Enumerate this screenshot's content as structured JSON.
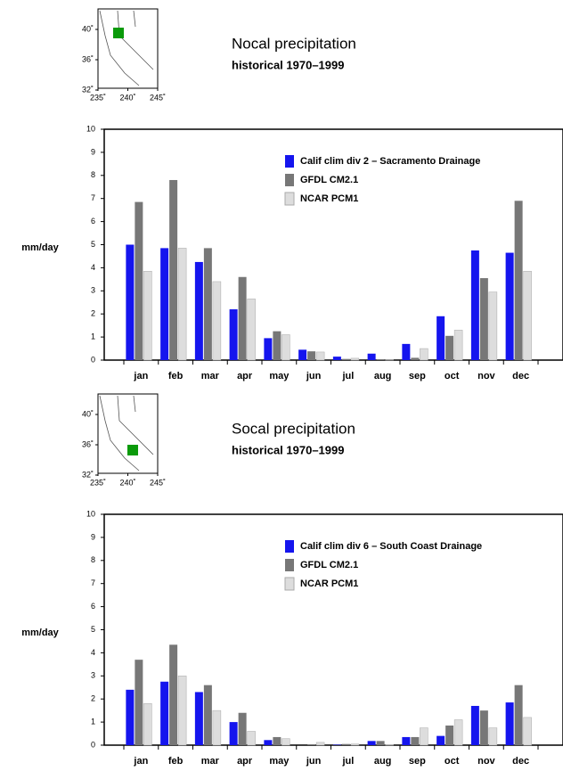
{
  "chart_data": [
    {
      "type": "bar",
      "title": "Nocal precipitation",
      "subtitle": "historical 1970–1999",
      "y_label": "mm/day",
      "categories": [
        "jan",
        "feb",
        "mar",
        "apr",
        "may",
        "jun",
        "jul",
        "aug",
        "sep",
        "oct",
        "nov",
        "dec"
      ],
      "series": [
        {
          "name": "Calif clim div 2 – Sacramento Drainage",
          "color": "#1515ee",
          "values": [
            5.0,
            4.85,
            4.25,
            2.2,
            0.95,
            0.45,
            0.15,
            0.28,
            0.7,
            1.9,
            4.75,
            4.65
          ]
        },
        {
          "name": "GFDL CM2.1",
          "color": "#777777",
          "values": [
            6.85,
            7.8,
            4.85,
            3.6,
            1.25,
            0.38,
            0.05,
            0.02,
            0.1,
            1.05,
            3.55,
            6.9
          ]
        },
        {
          "name": "NCAR PCM1",
          "color": "#dddddd",
          "values": [
            3.85,
            4.85,
            3.4,
            2.65,
            1.1,
            0.35,
            0.08,
            0.02,
            0.5,
            1.3,
            2.95,
            3.85
          ]
        }
      ],
      "ylim": [
        0,
        10
      ],
      "yticks": [
        0,
        1,
        2,
        3,
        4,
        5,
        6,
        7,
        8,
        9,
        10
      ],
      "map": {
        "yticks": [
          {
            "value": 40,
            "label": "40˚"
          },
          {
            "value": 36,
            "label": "36˚"
          },
          {
            "value": 32,
            "label": "32˚"
          }
        ],
        "xticks": [
          {
            "value": 235,
            "label": "235˚"
          },
          {
            "value": 240,
            "label": "240˚"
          },
          {
            "value": 245,
            "label": "245˚"
          }
        ]
      }
    },
    {
      "type": "bar",
      "title": "Socal precipitation",
      "subtitle": "historical 1970–1999",
      "y_label": "mm/day",
      "categories": [
        "jan",
        "feb",
        "mar",
        "apr",
        "may",
        "jun",
        "jul",
        "aug",
        "sep",
        "oct",
        "nov",
        "dec"
      ],
      "series": [
        {
          "name": "Calif clim div 6 – South Coast Drainage",
          "color": "#1515ee",
          "values": [
            2.4,
            2.75,
            2.3,
            1.0,
            0.22,
            0.0,
            0.02,
            0.18,
            0.35,
            0.4,
            1.7,
            1.85
          ]
        },
        {
          "name": "GFDL CM2.1",
          "color": "#777777",
          "values": [
            3.7,
            4.35,
            2.6,
            1.4,
            0.35,
            0.02,
            0.05,
            0.18,
            0.35,
            0.85,
            1.5,
            2.6
          ]
        },
        {
          "name": "NCAR PCM1",
          "color": "#dddddd",
          "values": [
            1.8,
            3.0,
            1.5,
            0.6,
            0.28,
            0.12,
            0.05,
            0.03,
            0.75,
            1.1,
            0.75,
            1.2
          ]
        }
      ],
      "ylim": [
        0,
        10
      ],
      "yticks": [
        0,
        1,
        2,
        3,
        4,
        5,
        6,
        7,
        8,
        9,
        10
      ],
      "map": {
        "yticks": [
          {
            "value": 40,
            "label": "40˚"
          },
          {
            "value": 36,
            "label": "36˚"
          },
          {
            "value": 32,
            "label": "32˚"
          }
        ],
        "xticks": [
          {
            "value": 235,
            "label": "235˚"
          },
          {
            "value": 240,
            "label": "240˚"
          },
          {
            "value": 245,
            "label": "245˚"
          }
        ]
      }
    }
  ]
}
